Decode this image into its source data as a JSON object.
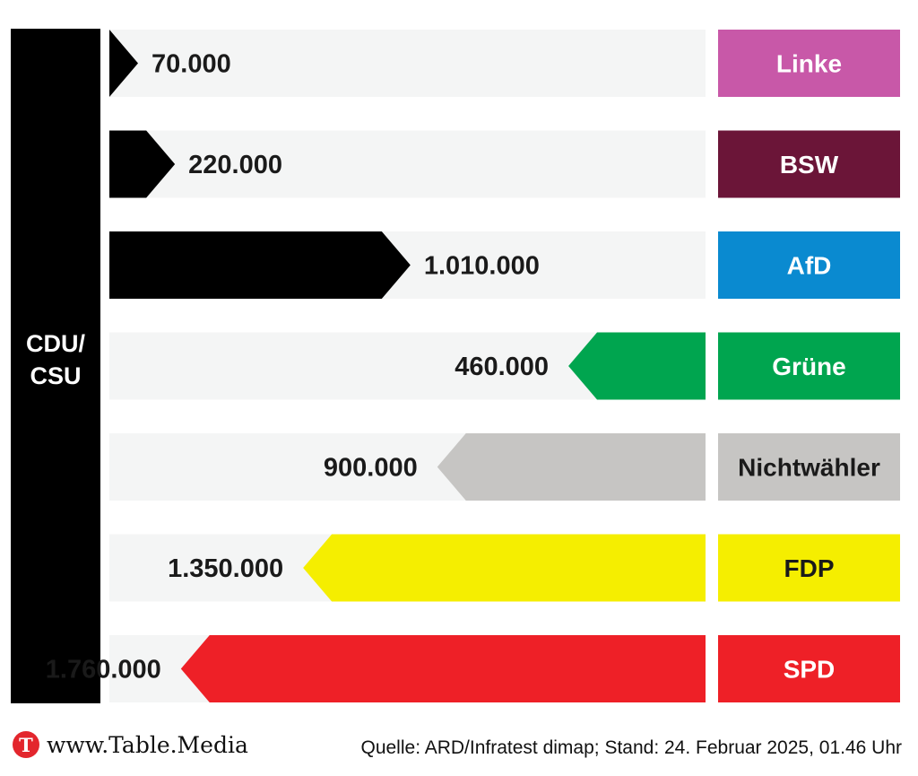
{
  "chart_data": {
    "type": "bar",
    "title": "",
    "center_party": "CDU/\nCSU",
    "center_color": "#000000",
    "categories": [
      "Linke",
      "BSW",
      "AfD",
      "Grüne",
      "Nichtwähler",
      "FDP",
      "SPD"
    ],
    "values": [
      70000,
      220000,
      1010000,
      460000,
      900000,
      1350000,
      1760000
    ],
    "value_labels": [
      "70.000",
      "220.000",
      "1.010.000",
      "460.000",
      "900.000",
      "1.350.000",
      "1.760.000"
    ],
    "direction": [
      "to_party",
      "to_party",
      "to_party",
      "from_party",
      "from_party",
      "from_party",
      "from_party"
    ],
    "colors": [
      "#c858a8",
      "#6b1538",
      "#0a8ad0",
      "#00a54f",
      "#c6c5c3",
      "#f5ee00",
      "#ee2027"
    ],
    "label_text_colors": [
      "#ffffff",
      "#ffffff",
      "#ffffff",
      "#ffffff",
      "#1a1a1a",
      "#1a1a1a",
      "#ffffff"
    ]
  },
  "footer": {
    "logo_letter": "T",
    "site": "www.Table.Media",
    "source": "Quelle: ARD/Infratest dimap; Stand: 24. Februar 2025, 01.46 Uhr"
  }
}
